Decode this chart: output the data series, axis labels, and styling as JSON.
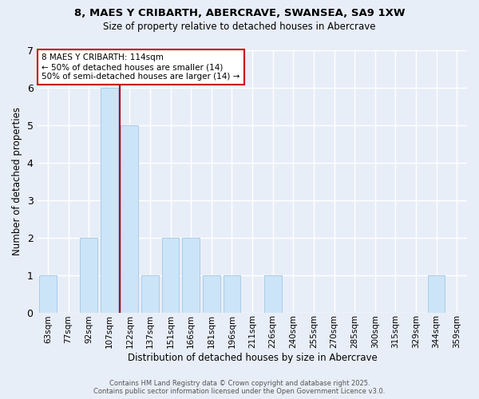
{
  "title_line1": "8, MAES Y CRIBARTH, ABERCRAVE, SWANSEA, SA9 1XW",
  "title_line2": "Size of property relative to detached houses in Abercrave",
  "xlabel": "Distribution of detached houses by size in Abercrave",
  "ylabel": "Number of detached properties",
  "bins": [
    "63sqm",
    "77sqm",
    "92sqm",
    "107sqm",
    "122sqm",
    "137sqm",
    "151sqm",
    "166sqm",
    "181sqm",
    "196sqm",
    "211sqm",
    "226sqm",
    "240sqm",
    "255sqm",
    "270sqm",
    "285sqm",
    "300sqm",
    "315sqm",
    "329sqm",
    "344sqm",
    "359sqm"
  ],
  "counts": [
    1,
    0,
    2,
    6,
    5,
    1,
    2,
    2,
    1,
    1,
    0,
    1,
    0,
    0,
    0,
    0,
    0,
    0,
    0,
    1,
    0
  ],
  "bar_color": "#cce4f7",
  "bar_edge_color": "#aacce8",
  "vline_index": 3.5,
  "vline_color": "#aa0000",
  "ylim": [
    0,
    7
  ],
  "yticks": [
    0,
    1,
    2,
    3,
    4,
    5,
    6,
    7
  ],
  "annotation_title": "8 MAES Y CRIBARTH: 114sqm",
  "annotation_line2": "← 50% of detached houses are smaller (14)",
  "annotation_line3": "50% of semi-detached houses are larger (14) →",
  "annotation_box_color": "#ffffff",
  "annotation_box_edge": "#cc0000",
  "footer_line1": "Contains HM Land Registry data © Crown copyright and database right 2025.",
  "footer_line2": "Contains public sector information licensed under the Open Government Licence v3.0.",
  "background_color": "#e8eef8",
  "grid_color": "#ffffff"
}
